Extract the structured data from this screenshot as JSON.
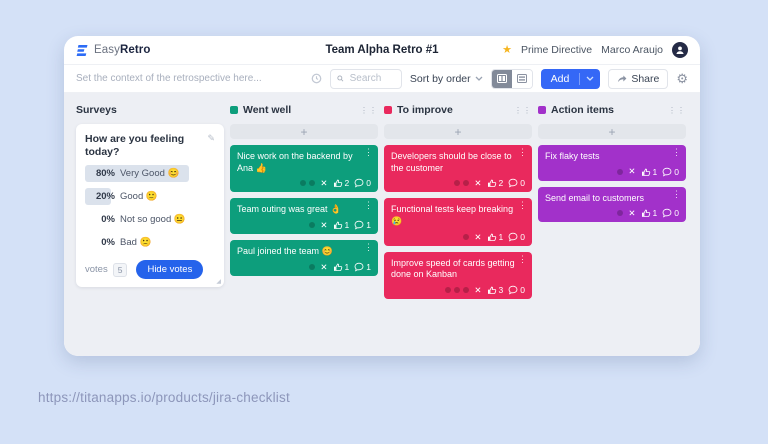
{
  "header": {
    "logo_easy": "Easy",
    "logo_retro": "Retro",
    "title": "Team Alpha Retro #1",
    "prime_directive": "Prime Directive",
    "user_name": "Marco Araujo"
  },
  "toolbar": {
    "context_placeholder": "Set the context of the retrospective here...",
    "search_placeholder": "Search",
    "sort_label": "Sort by order",
    "add_label": "Add",
    "share_label": "Share"
  },
  "board": {
    "surveys": {
      "title": "Surveys",
      "question": "How are you feeling today?",
      "options": [
        {
          "percent": "80%",
          "label": "Very Good 😊",
          "bar": 80
        },
        {
          "percent": "20%",
          "label": "Good 🙂",
          "bar": 20
        },
        {
          "percent": "0%",
          "label": "Not so good 😐",
          "bar": 0
        },
        {
          "percent": "0%",
          "label": "Bad 🙁",
          "bar": 0
        }
      ],
      "votes_label": "votes",
      "votes_count": "5",
      "hide_votes_label": "Hide votes"
    },
    "add_card_label": "+",
    "columns": [
      {
        "name": "Went well",
        "color": "#0d9e7c",
        "cards": [
          {
            "text": "Nice work on the backend by Ana 👍",
            "vote_dots": 2,
            "likes": "2",
            "comments": "0"
          },
          {
            "text": "Team outing was great 👌",
            "vote_dots": 1,
            "likes": "1",
            "comments": "1"
          },
          {
            "text": "Paul joined the team 😊",
            "vote_dots": 1,
            "likes": "1",
            "comments": "1"
          }
        ]
      },
      {
        "name": "To improve",
        "color": "#e9295d",
        "cards": [
          {
            "text": "Developers should be close to the customer",
            "vote_dots": 2,
            "likes": "2",
            "comments": "0"
          },
          {
            "text": "Functional tests keep breaking 😢",
            "vote_dots": 1,
            "likes": "1",
            "comments": "0"
          },
          {
            "text": "Improve speed of cards getting done on Kanban",
            "vote_dots": 3,
            "likes": "3",
            "comments": "0"
          }
        ]
      },
      {
        "name": "Action items",
        "color": "#a231ca",
        "cards": [
          {
            "text": "Fix flaky tests",
            "vote_dots": 1,
            "likes": "1",
            "comments": "0"
          },
          {
            "text": "Send email to customers",
            "vote_dots": 1,
            "likes": "1",
            "comments": "0"
          }
        ]
      }
    ]
  },
  "page": {
    "caption_url": "https://titanapps.io/products/jira-checklist"
  },
  "colors": {
    "accent_blue": "#3568f6",
    "page_bg": "#d4e1f7",
    "board_bg": "#edeff4"
  }
}
